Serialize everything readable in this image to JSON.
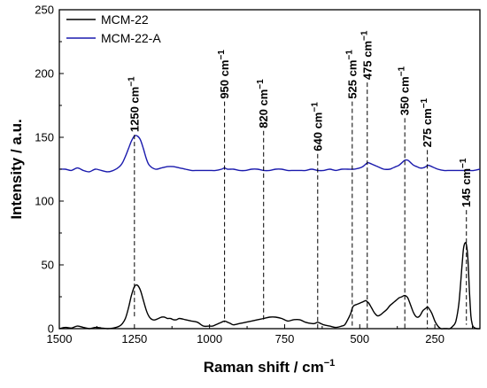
{
  "chart_data": {
    "type": "line",
    "xlabel": "Raman shift / cm",
    "xlabel_superscript": "−1",
    "ylabel": "Intensity / a.u.",
    "xlim": [
      1500,
      100
    ],
    "ylim": [
      0,
      250
    ],
    "x_reversed": true,
    "xticks": [
      1500,
      1250,
      1000,
      750,
      500,
      250
    ],
    "yticks": [
      0,
      50,
      100,
      150,
      200,
      250
    ],
    "legend_position": "top-left",
    "series": [
      {
        "name": "MCM-22",
        "color": "#000000",
        "x": [
          1500,
          1480,
          1460,
          1440,
          1420,
          1400,
          1380,
          1360,
          1340,
          1320,
          1300,
          1290,
          1280,
          1270,
          1260,
          1250,
          1240,
          1230,
          1220,
          1210,
          1200,
          1190,
          1180,
          1170,
          1160,
          1150,
          1140,
          1130,
          1120,
          1110,
          1100,
          1080,
          1060,
          1040,
          1020,
          1000,
          990,
          980,
          970,
          960,
          950,
          940,
          930,
          920,
          900,
          880,
          860,
          840,
          820,
          800,
          780,
          760,
          740,
          720,
          700,
          680,
          660,
          650,
          640,
          630,
          620,
          600,
          580,
          560,
          550,
          540,
          530,
          525,
          520,
          510,
          500,
          490,
          480,
          475,
          470,
          460,
          450,
          440,
          430,
          420,
          410,
          400,
          390,
          380,
          370,
          360,
          350,
          340,
          330,
          320,
          310,
          300,
          290,
          280,
          275,
          270,
          260,
          250,
          240,
          230,
          220,
          210,
          200,
          190,
          180,
          170,
          160,
          155,
          150,
          145,
          140,
          135,
          130,
          125,
          120,
          110,
          100
        ],
        "y": [
          0,
          1,
          0.5,
          2,
          1,
          0,
          1,
          0.5,
          0,
          0.5,
          2,
          4,
          8,
          16,
          26,
          33,
          34,
          30,
          22,
          14,
          9,
          7,
          7,
          8,
          9,
          9,
          8,
          8,
          7,
          7,
          8,
          7,
          6,
          5,
          2,
          2,
          2,
          3,
          4,
          5,
          6,
          5,
          4,
          3,
          4,
          5,
          6,
          7,
          8,
          9,
          9,
          8,
          6,
          7,
          7,
          5,
          4,
          4,
          5,
          4,
          3,
          2,
          1,
          2,
          3,
          7,
          12,
          16,
          18,
          19,
          20,
          21,
          22,
          21,
          20,
          16,
          12,
          10,
          11,
          13,
          15,
          18,
          20,
          22,
          24,
          25,
          26,
          24,
          18,
          12,
          9,
          10,
          14,
          16,
          17,
          16,
          12,
          6,
          2,
          0,
          0,
          0,
          0,
          2,
          6,
          20,
          48,
          62,
          67,
          66,
          55,
          30,
          10,
          3,
          1,
          0,
          0
        ]
      },
      {
        "name": "MCM-22-A",
        "color": "#1a1aad",
        "x": [
          1500,
          1480,
          1460,
          1440,
          1420,
          1400,
          1380,
          1360,
          1340,
          1320,
          1300,
          1290,
          1280,
          1270,
          1260,
          1250,
          1240,
          1230,
          1220,
          1210,
          1200,
          1180,
          1160,
          1140,
          1120,
          1100,
          1080,
          1060,
          1040,
          1020,
          1000,
          980,
          960,
          950,
          940,
          920,
          900,
          880,
          860,
          840,
          820,
          800,
          780,
          760,
          740,
          720,
          700,
          680,
          660,
          640,
          620,
          600,
          580,
          560,
          540,
          520,
          500,
          490,
          480,
          475,
          470,
          460,
          450,
          440,
          420,
          400,
          390,
          380,
          370,
          360,
          350,
          340,
          330,
          320,
          310,
          300,
          290,
          280,
          275,
          270,
          260,
          250,
          240,
          220,
          200,
          180,
          160,
          150,
          140,
          120,
          100
        ],
        "y": [
          125,
          125,
          124,
          126,
          124,
          123,
          125,
          124,
          123,
          124,
          127,
          130,
          135,
          141,
          147,
          151,
          151,
          148,
          141,
          133,
          128,
          125,
          126,
          127,
          127,
          126,
          125,
          124,
          124,
          124,
          124,
          124,
          125,
          126,
          125,
          125,
          124,
          124,
          125,
          125,
          124,
          124,
          125,
          125,
          124,
          124,
          124,
          124,
          125,
          124,
          124,
          125,
          124,
          125,
          125,
          125,
          126,
          127,
          129,
          130,
          130,
          129,
          128,
          127,
          125,
          125,
          126,
          127,
          128,
          130,
          132,
          132,
          130,
          128,
          127,
          126,
          126,
          127,
          128,
          128,
          127,
          126,
          125,
          124,
          124,
          124,
          124,
          124,
          124,
          124,
          125
        ]
      }
    ],
    "annotations": [
      {
        "x": 1250,
        "label": "1250 cm",
        "sup": "−1",
        "top_y": 152,
        "bottom_y": 9
      },
      {
        "x": 950,
        "label": "950 cm",
        "sup": "−1",
        "top_y": 178,
        "bottom_y": 5
      },
      {
        "x": 820,
        "label": "820 cm",
        "sup": "−1",
        "top_y": 155,
        "bottom_y": 7
      },
      {
        "x": 640,
        "label": "640 cm",
        "sup": "−1",
        "top_y": 137,
        "bottom_y": 0
      },
      {
        "x": 525,
        "label": "525 cm",
        "sup": "−1",
        "top_y": 178,
        "bottom_y": 0
      },
      {
        "x": 475,
        "label": "475 cm",
        "sup": "−1",
        "top_y": 193,
        "bottom_y": 0
      },
      {
        "x": 350,
        "label": "350 cm",
        "sup": "−1",
        "top_y": 165,
        "bottom_y": 0
      },
      {
        "x": 275,
        "label": "275 cm",
        "sup": "−1",
        "top_y": 140,
        "bottom_y": 0
      },
      {
        "x": 145,
        "label": "145 cm",
        "sup": "−1",
        "top_y": 93,
        "bottom_y": 3
      }
    ]
  }
}
